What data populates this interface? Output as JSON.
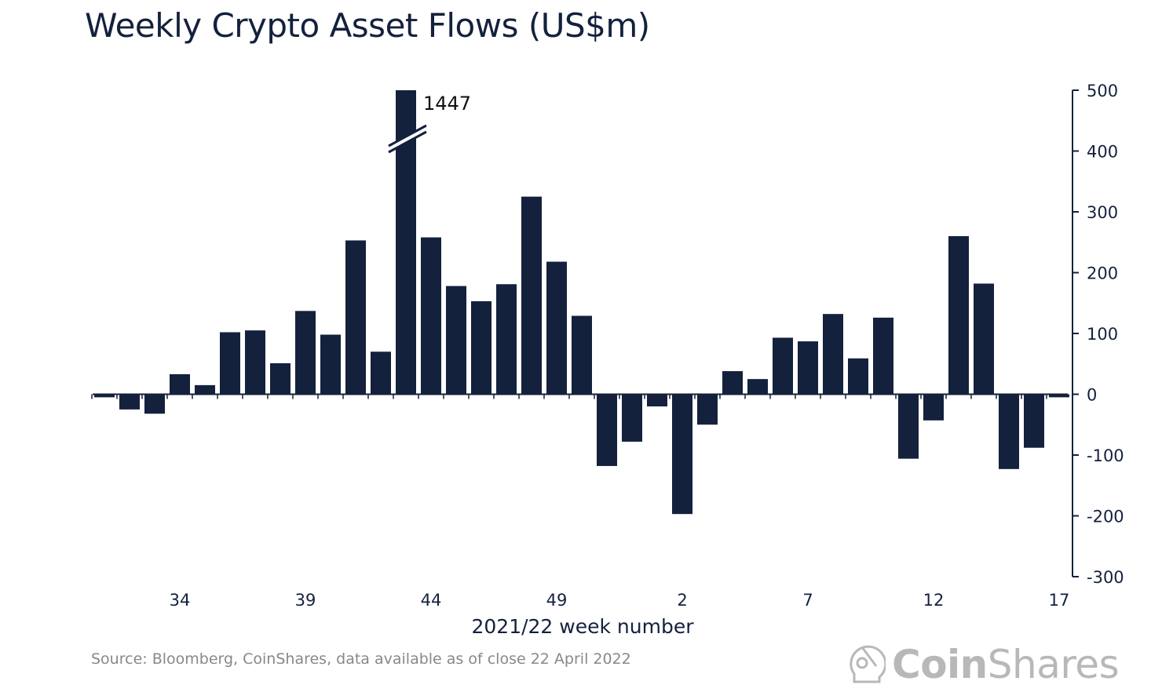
{
  "chart_data": {
    "type": "bar",
    "title": "Weekly Crypto Asset Flows (US$m)",
    "xlabel": "2021/22 week number",
    "ylabel": "",
    "ylim": [
      -300,
      500
    ],
    "yticks": [
      500,
      400,
      300,
      200,
      100,
      0,
      -100,
      -200,
      -300
    ],
    "xtick_labels": [
      "34",
      "39",
      "44",
      "49",
      "2",
      "7",
      "12",
      "17"
    ],
    "y_axis_side": "right",
    "grid": false,
    "bar_color": "#14213d",
    "categories": [
      "31",
      "32",
      "33",
      "34",
      "35",
      "36",
      "37",
      "38",
      "39",
      "40",
      "41",
      "42",
      "43",
      "44",
      "45",
      "46",
      "47",
      "48",
      "49",
      "50",
      "51",
      "52",
      "1",
      "2",
      "3",
      "4",
      "5",
      "6",
      "7",
      "8",
      "9",
      "10",
      "11",
      "12",
      "13",
      "14",
      "15",
      "16",
      "17"
    ],
    "values": [
      -5,
      -25,
      -32,
      33,
      15,
      102,
      105,
      51,
      137,
      98,
      253,
      70,
      1447,
      258,
      178,
      153,
      181,
      325,
      218,
      129,
      -118,
      -78,
      -20,
      -197,
      -50,
      38,
      25,
      93,
      87,
      132,
      59,
      126,
      -106,
      -43,
      260,
      182,
      -123,
      -88,
      -5
    ],
    "annotations": [
      {
        "category": "43",
        "text": "1447",
        "note": "axis break"
      }
    ]
  },
  "footer": {
    "source": "Source: Bloomberg, CoinShares, data available as of close 22 April 2022",
    "logo_text_bold": "Coin",
    "logo_text_light": "Shares"
  }
}
